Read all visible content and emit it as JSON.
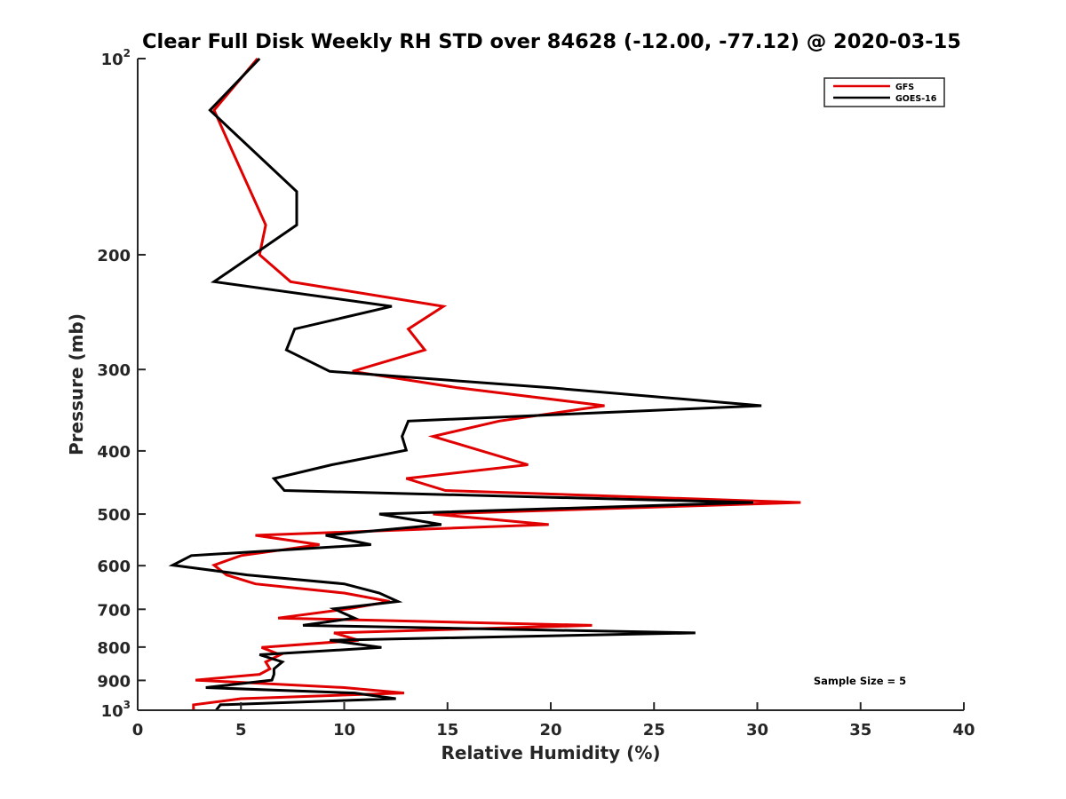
{
  "chart_data": {
    "type": "line",
    "title": "Clear Full Disk Weekly RH STD over 84628 (-12.00, -77.12) @ 2020-03-15",
    "xlabel": "Relative Humidity (%)",
    "ylabel": "Pressure (mb)",
    "xlim": [
      0,
      40
    ],
    "ylim": [
      100,
      1000
    ],
    "yscale": "log",
    "yreversed": true,
    "grid": false,
    "legend_position": "top-right",
    "xticks": [
      0,
      5,
      10,
      15,
      20,
      25,
      30,
      35,
      40
    ],
    "xtick_labels": [
      "0",
      "5",
      "10",
      "15",
      "20",
      "25",
      "30",
      "35",
      "40"
    ],
    "yticks": [
      100,
      200,
      300,
      400,
      500,
      600,
      700,
      800,
      900,
      1000
    ],
    "ytick_labels": [
      {
        "base": "10",
        "sup": "2"
      },
      {
        "base": "200",
        "sup": ""
      },
      {
        "base": "300",
        "sup": ""
      },
      {
        "base": "400",
        "sup": ""
      },
      {
        "base": "500",
        "sup": ""
      },
      {
        "base": "600",
        "sup": ""
      },
      {
        "base": "700",
        "sup": ""
      },
      {
        "base": "800",
        "sup": ""
      },
      {
        "base": "900",
        "sup": ""
      },
      {
        "base": "10",
        "sup": "3"
      }
    ],
    "annotation": "Sample Size = 5",
    "series": [
      {
        "name": "GFS",
        "color": "#e00000",
        "pressure": [
          100,
          120,
          139,
          180,
          200,
          220,
          240,
          260,
          280,
          302,
          320,
          341,
          360,
          380,
          420,
          441,
          460,
          480,
          500,
          519,
          539,
          557,
          579,
          599,
          620,
          640,
          661,
          681,
          699,
          722,
          741,
          761,
          781,
          801,
          822,
          843,
          864,
          881,
          899,
          923,
          941,
          960,
          981,
          1000
        ],
        "rh": [
          5.8,
          3.7,
          4.6,
          6.2,
          5.9,
          7.4,
          14.8,
          13.1,
          13.9,
          10.4,
          15.5,
          22.6,
          17.5,
          14.3,
          18.9,
          13.0,
          14.9,
          32.1,
          14.3,
          19.9,
          5.7,
          8.8,
          5.0,
          3.7,
          4.3,
          5.7,
          10.0,
          12.2,
          10.2,
          6.8,
          22.0,
          9.5,
          10.7,
          6.0,
          6.9,
          6.2,
          6.4,
          5.9,
          2.8,
          10.0,
          12.9,
          5.0,
          2.7,
          2.7
        ]
      },
      {
        "name": "GOES-16",
        "color": "#000000",
        "pressure": [
          100,
          120,
          160,
          180,
          200,
          220,
          240,
          260,
          280,
          302,
          320,
          341,
          360,
          380,
          399,
          420,
          441,
          460,
          480,
          500,
          519,
          539,
          557,
          579,
          599,
          620,
          640,
          661,
          681,
          699,
          722,
          741,
          761,
          781,
          801,
          822,
          843,
          864,
          881,
          899,
          923,
          941,
          960,
          981,
          1000
        ],
        "rh": [
          5.9,
          3.5,
          7.7,
          7.7,
          5.6,
          3.7,
          12.3,
          7.6,
          7.2,
          9.3,
          20.0,
          30.2,
          13.1,
          12.8,
          13.0,
          9.4,
          6.6,
          7.1,
          29.8,
          11.7,
          14.7,
          9.1,
          11.3,
          2.6,
          1.7,
          5.3,
          10.0,
          11.7,
          12.6,
          9.5,
          10.5,
          8.0,
          27.0,
          9.3,
          11.8,
          5.9,
          7.0,
          6.6,
          6.6,
          6.5,
          3.3,
          10.5,
          12.5,
          4.0,
          3.8
        ]
      }
    ]
  }
}
